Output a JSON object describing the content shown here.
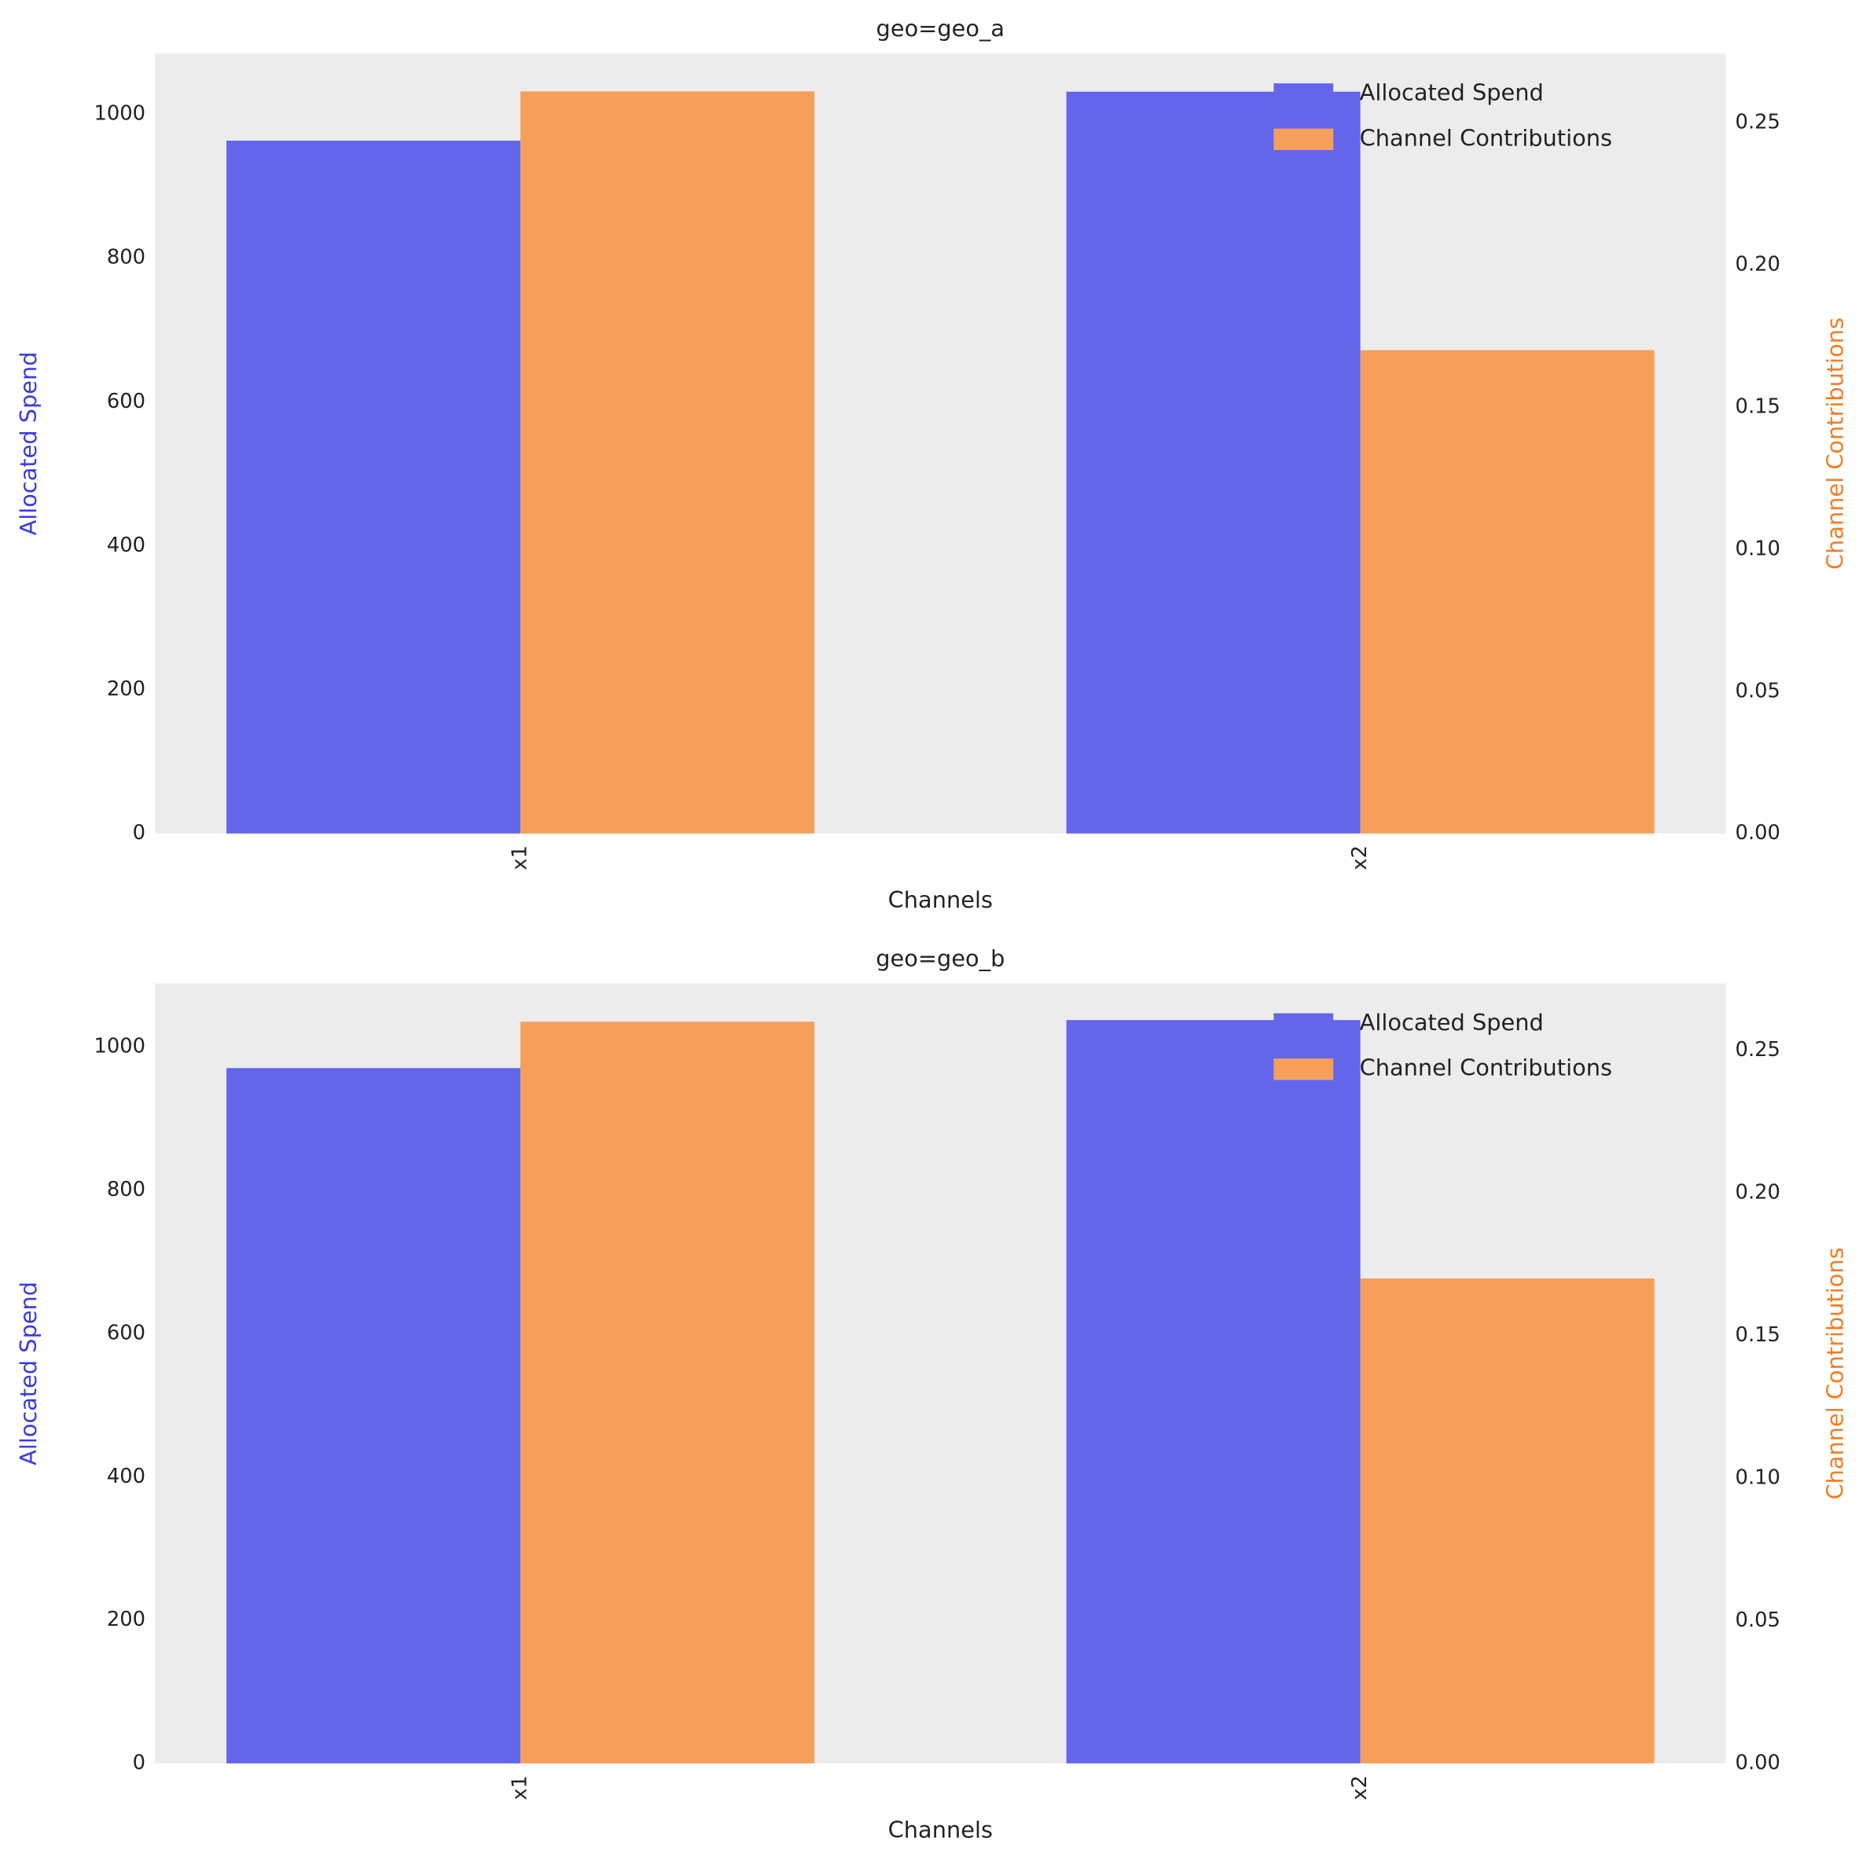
{
  "chart_data": [
    {
      "type": "bar",
      "title": "geo=geo_a",
      "x_label": "Channels",
      "y_label": "Allocated Spend",
      "y2_label": "Channel Contributions",
      "y_label_color": "#3a3ae0",
      "y2_label_color": "#f57c22",
      "background": "#ececec",
      "legend": "upper right",
      "categories": [
        "x1",
        "x2"
      ],
      "series": [
        {
          "name": "Allocated Spend",
          "color": "#6366eb",
          "values": [
            963,
            1031
          ]
        },
        {
          "name": "Channel Contributions",
          "color": "#f59f5b",
          "values": [
            0.261,
            0.17
          ],
          "axis": "y2"
        }
      ],
      "ylim": [
        0,
        1084
      ],
      "yticks": [
        0,
        200,
        400,
        600,
        800,
        1000
      ],
      "y2lim": [
        0,
        0.2743
      ],
      "y2ticks": [
        {
          "value": 0,
          "label": "0.00"
        },
        {
          "value": 0.05,
          "label": "0.05"
        },
        {
          "value": 0.1,
          "label": "0.10"
        },
        {
          "value": 0.15,
          "label": "0.15"
        },
        {
          "value": 0.2,
          "label": "0.20"
        },
        {
          "value": 0.25,
          "label": "0.25"
        }
      ]
    },
    {
      "type": "bar",
      "title": "geo=geo_b",
      "x_label": "Channels",
      "y_label": "Allocated Spend",
      "y2_label": "Channel Contributions",
      "y_label_color": "#3a3ae0",
      "y2_label_color": "#f57c22",
      "background": "#ececec",
      "legend": "upper right",
      "categories": [
        "x1",
        "x2"
      ],
      "series": [
        {
          "name": "Allocated Spend",
          "color": "#6366eb",
          "values": [
            970,
            1037
          ]
        },
        {
          "name": "Channel Contributions",
          "color": "#f59f5b",
          "values": [
            0.26,
            0.17
          ],
          "axis": "y2"
        }
      ],
      "ylim": [
        0,
        1088
      ],
      "yticks": [
        0,
        200,
        400,
        600,
        800,
        1000
      ],
      "y2lim": [
        0,
        0.2734
      ],
      "y2ticks": [
        {
          "value": 0,
          "label": "0.00"
        },
        {
          "value": 0.05,
          "label": "0.05"
        },
        {
          "value": 0.1,
          "label": "0.10"
        },
        {
          "value": 0.15,
          "label": "0.15"
        },
        {
          "value": 0.2,
          "label": "0.20"
        },
        {
          "value": 0.25,
          "label": "0.25"
        }
      ]
    }
  ]
}
